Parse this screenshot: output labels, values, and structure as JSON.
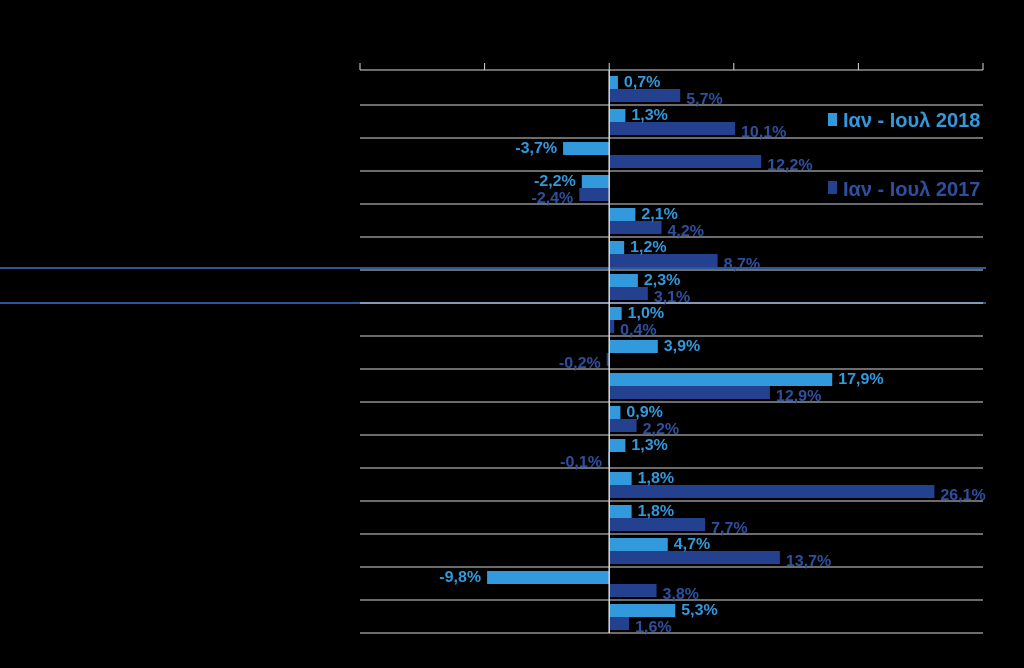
{
  "colors": {
    "background": "#000000",
    "series_2018": "#3399dd",
    "series_2017": "#23418f",
    "grid": "#d9d9d9",
    "label_2018": "#3399dd",
    "label_2017": "#2e4f9e",
    "highlight_line": "#2e5597"
  },
  "chart_data": {
    "type": "bar",
    "orientation": "horizontal",
    "title": "",
    "xlabel": "",
    "ylabel": "",
    "xlim": [
      -20,
      30
    ],
    "x_tick_step": 10,
    "grid": true,
    "legend_position": "right",
    "categories": [
      "",
      "",
      "",
      "",
      "",
      "",
      "",
      "",
      "",
      "",
      "",
      "",
      "",
      "",
      "",
      "",
      ""
    ],
    "series": [
      {
        "name": "Ιαν - Ιουλ 2018",
        "color": "#3399dd",
        "values": [
          0.7,
          1.3,
          -3.7,
          -2.2,
          2.1,
          1.2,
          2.3,
          1.0,
          3.9,
          17.9,
          0.9,
          1.3,
          1.8,
          1.8,
          4.7,
          -9.8,
          5.3
        ],
        "labels": [
          "0,7%",
          "1,3%",
          "-3,7%",
          "-2,2%",
          "2,1%",
          "1,2%",
          "2,3%",
          "1,0%",
          "3,9%",
          "17,9%",
          "0,9%",
          "1,3%",
          "1,8%",
          "1,8%",
          "4,7%",
          "-9,8%",
          "5,3%"
        ]
      },
      {
        "name": "Ιαν - Ιουλ 2017",
        "color": "#23418f",
        "values": [
          5.7,
          10.1,
          12.2,
          -2.4,
          4.2,
          8.7,
          3.1,
          0.4,
          -0.2,
          12.9,
          2.2,
          -0.1,
          26.1,
          7.7,
          13.7,
          3.8,
          1.6
        ],
        "labels": [
          "5,7%",
          "10,1%",
          "12,2%",
          "-2,4%",
          "4,2%",
          "8,7%",
          "3,1%",
          "0,4%",
          "-0,2%",
          "12,9%",
          "2,2%",
          "-0,1%",
          "26,1%",
          "7,7%",
          "13,7%",
          "3,8%",
          "1,6%"
        ]
      }
    ],
    "highlighted_row_index": 6
  }
}
